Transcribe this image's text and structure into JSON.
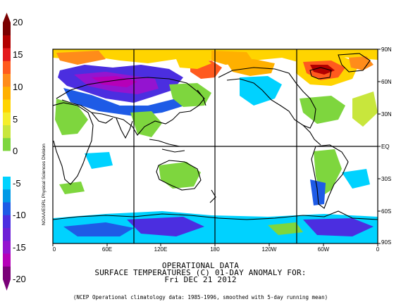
{
  "colorbar": {
    "labels": [
      "20",
      "15",
      "10",
      "5",
      "0",
      "-5",
      "-10",
      "-15",
      "-20"
    ],
    "colors": [
      "#7a0000",
      "#b30000",
      "#e41a1c",
      "#ff5a1e",
      "#ff8c1a",
      "#ffb000",
      "#ffd400",
      "#f5ee2b",
      "#c8e63c",
      "#7ed63e",
      "#ffffff",
      "#ffffff",
      "#00d2ff",
      "#0099e6",
      "#1e5be6",
      "#4b2ee0",
      "#6e1fd6",
      "#9414d0",
      "#b600b8",
      "#7a0078"
    ]
  },
  "map": {
    "lat_labels": [
      "90N",
      "60N",
      "30N",
      "EQ",
      "30S",
      "60S",
      "90S"
    ],
    "lon_labels": [
      "0",
      "60E",
      "120E",
      "180",
      "120W",
      "60W",
      "0"
    ],
    "vertical_credit": "NOAA/ESRL Physical Sciences Division",
    "land_color": "#ffffff",
    "outline_color": "#000000"
  },
  "caption": {
    "line1": "OPERATIONAL DATA",
    "line2": "SURFACE TEMPERATURES (C)   01-DAY ANOMALY FOR:",
    "line3": "Fri DEC 21 2012",
    "footnote": "(NCEP Operational climatology data: 1985-1996, smoothed with 5-day running mean)"
  }
}
